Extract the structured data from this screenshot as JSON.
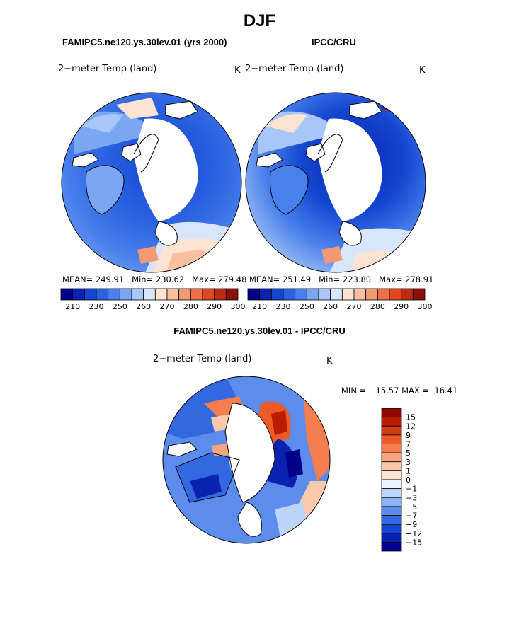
{
  "figure": {
    "title": "DJF"
  },
  "panels": [
    {
      "id": "model",
      "header": "FAMIPC5.ne120.ys.30lev.01 (yrs 2000)",
      "variable": "2−meter Temp (land)",
      "units": "K",
      "stats": {
        "mean_label": "MEAN=",
        "mean": "249.91",
        "min_label": "Min=",
        "min": "230.62",
        "max_label": "Max=",
        "max": "279.48"
      }
    },
    {
      "id": "obs",
      "header": "IPCC/CRU",
      "variable": "2−meter Temp (land)",
      "units": "K",
      "stats": {
        "mean_label": "MEAN=",
        "mean": "251.49",
        "min_label": "Min=",
        "min": "223.80",
        "max_label": "Max=",
        "max": "278.91"
      }
    }
  ],
  "temp_colorbar": {
    "colors": [
      "#00008b",
      "#0a23b4",
      "#1446d0",
      "#2a62e0",
      "#4a80ec",
      "#7aa6f2",
      "#a8c6f6",
      "#d8e6fb",
      "#fde4d2",
      "#f8c0a0",
      "#f49a72",
      "#ef7048",
      "#e04620",
      "#bc2a10",
      "#8c1004"
    ],
    "labels": [
      "210",
      "230",
      "250",
      "260",
      "270",
      "280",
      "290",
      "300"
    ]
  },
  "diff_panel": {
    "header": "FAMIPC5.ne120.ys.30lev.01 - IPCC/CRU",
    "variable": "2−meter Temp (land)",
    "units": "K",
    "min_label": "MIN =",
    "min": "−15.57",
    "max_label": "MAX =",
    "max": "16.41"
  },
  "diff_colorbar": {
    "colors": [
      "#8c0a00",
      "#b81c04",
      "#d43a10",
      "#ec5a28",
      "#f47e50",
      "#f8a47e",
      "#fbc8aa",
      "#fde6d8",
      "#eef4ff",
      "#bcd6fa",
      "#8cb4f4",
      "#5c8cec",
      "#3468e0",
      "#1444d0",
      "#0a22b0",
      "#00008b"
    ],
    "labels": [
      "15",
      "12",
      "9",
      "7",
      "5",
      "3",
      "1",
      "0",
      "−1",
      "−3",
      "−5",
      "−7",
      "−9",
      "−12",
      "−15"
    ]
  },
  "map_features": {
    "land_fill": "#ffffff",
    "coast_color": "#000000"
  }
}
